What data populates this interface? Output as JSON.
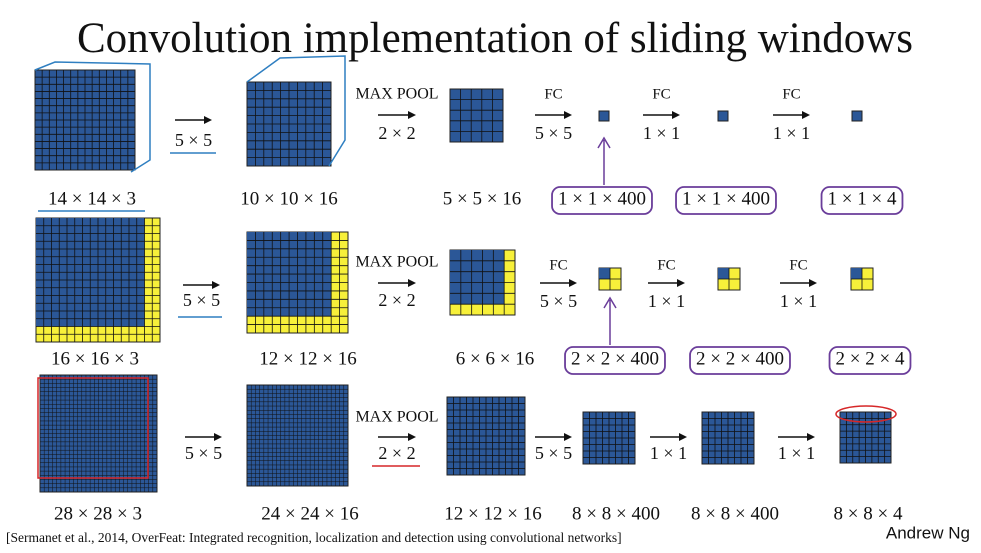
{
  "title": "Convolution implementation of sliding windows",
  "rows": [
    {
      "volumes": [
        {
          "label": "14 × 14 × 3"
        },
        {
          "label": "10 × 10 × 16"
        },
        {
          "label": "5 × 5 × 16"
        },
        {
          "label": "1 × 1 × 400"
        },
        {
          "label": "1 × 1 × 400"
        },
        {
          "label": "1 × 1 × 4"
        }
      ],
      "ops": [
        {
          "size": "5 × 5"
        },
        {
          "name": "MAX POOL",
          "size": "2 × 2"
        },
        {
          "name": "FC",
          "size": "5 × 5"
        },
        {
          "name": "FC",
          "size": "1 × 1"
        },
        {
          "name": "FC",
          "size": "1 × 1"
        }
      ]
    },
    {
      "volumes": [
        {
          "label": "16 × 16 × 3"
        },
        {
          "label": "12 × 12 × 16"
        },
        {
          "label": "6 × 6 × 16"
        },
        {
          "label": "2 × 2 × 400"
        },
        {
          "label": "2 × 2 × 400"
        },
        {
          "label": "2 × 2 × 4"
        }
      ],
      "ops": [
        {
          "size": "5 × 5"
        },
        {
          "name": "MAX POOL",
          "size": "2 × 2"
        },
        {
          "name": "FC",
          "size": "5 × 5"
        },
        {
          "name": "FC",
          "size": "1 × 1"
        },
        {
          "name": "FC",
          "size": "1 × 1"
        }
      ]
    },
    {
      "volumes": [
        {
          "label": "28 × 28 × 3"
        },
        {
          "label": "24 × 24 × 16"
        },
        {
          "label": "12 × 12 × 16"
        },
        {
          "label": "8 × 8 × 400"
        },
        {
          "label": "8 × 8 × 400"
        },
        {
          "label": "8 × 8 × 4"
        }
      ],
      "ops": [
        {
          "size": "5 × 5"
        },
        {
          "name": "MAX POOL",
          "size": "2 × 2"
        },
        {
          "size": "5 × 5"
        },
        {
          "size": "1 × 1"
        },
        {
          "size": "1 × 1"
        }
      ]
    }
  ],
  "citation": "[Sermanet et al., 2014, OverFeat: Integrated recognition, localization and detection using convolutional networks]",
  "author": "Andrew Ng"
}
